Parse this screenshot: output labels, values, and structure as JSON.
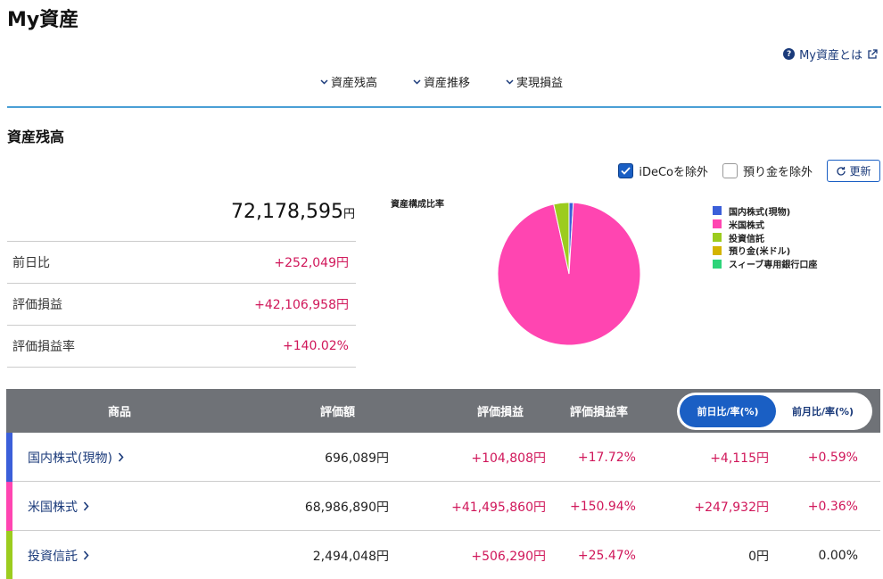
{
  "page_title": "My資産",
  "help_link": {
    "label": "My資産とは"
  },
  "anchor_nav": [
    {
      "label": "資産残高"
    },
    {
      "label": "資産推移"
    },
    {
      "label": "実現損益"
    }
  ],
  "section_title": "資産残高",
  "options": {
    "ideco_label": "iDeCoを除外",
    "ideco_checked": true,
    "deposit_label": "預り金を除外",
    "deposit_checked": false,
    "refresh_label": "更新"
  },
  "total": {
    "value": "72,178,595",
    "unit": "円"
  },
  "summary": [
    {
      "label": "前日比",
      "value": "+252,049円"
    },
    {
      "label": "評価損益",
      "value": "+42,106,958円"
    },
    {
      "label": "評価損益率",
      "value": "+140.02%"
    }
  ],
  "chart_data": {
    "type": "pie",
    "title": "資産構成比率",
    "categories": [
      "国内株式(現物)",
      "米国株式",
      "投資信託",
      "預り金(米ドル)",
      "スィーブ専用銀行口座"
    ],
    "values": [
      696089,
      68986890,
      2494048,
      0,
      0
    ],
    "colors": [
      "#3b5fd9",
      "#ff45b1",
      "#9ccc1e",
      "#d4b400",
      "#2ed47a"
    ],
    "legend_position": "right"
  },
  "table": {
    "headers": {
      "product": "商品",
      "valuation": "評価額",
      "gain": "評価損益",
      "gain_rate": "評価損益率"
    },
    "toggle": {
      "active": "前日比/率(%)",
      "inactive": "前月比/率(%)"
    },
    "rows": [
      {
        "name": "国内株式(現物)",
        "color": "#3b5fd9",
        "valuation": "696,089円",
        "gain": "+104,808円",
        "gain_rate": "+17.72%",
        "day_change": "+4,115円",
        "day_rate": "+0.59%"
      },
      {
        "name": "米国株式",
        "color": "#ff45b1",
        "valuation": "68,986,890円",
        "gain": "+41,495,860円",
        "gain_rate": "+150.94%",
        "day_change": "+247,932円",
        "day_rate": "+0.36%"
      },
      {
        "name": "投資信託",
        "color": "#9ccc1e",
        "valuation": "2,494,048円",
        "gain": "+506,290円",
        "gain_rate": "+25.47%",
        "day_change": "0円",
        "day_rate": "0.00%"
      }
    ]
  }
}
